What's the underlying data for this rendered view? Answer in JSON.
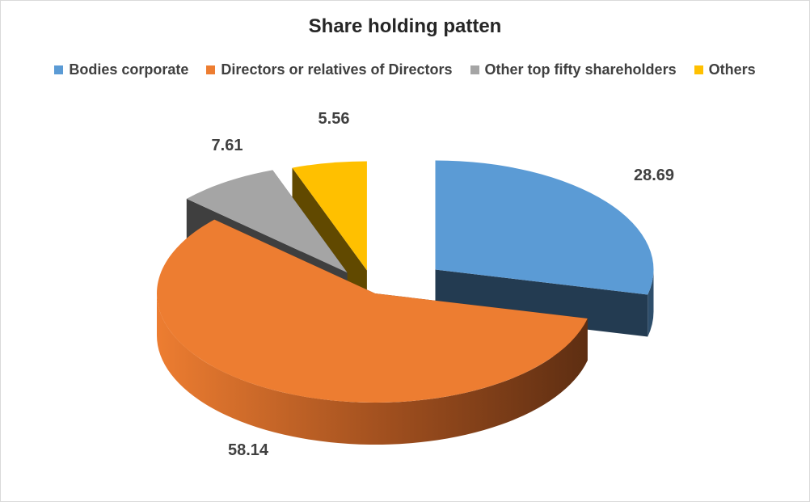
{
  "chart_data": {
    "type": "pie",
    "title": "Share holding patten",
    "categories": [
      "Bodies corporate",
      "Directors or relatives of Directors",
      "Other top fifty shareholders",
      "Others"
    ],
    "values": [
      28.69,
      58.14,
      7.61,
      5.56
    ],
    "value_labels": [
      "28.69",
      "58.14",
      "7.61",
      "5.56"
    ],
    "colors": [
      "#5B9BD5",
      "#ED7D31",
      "#A5A5A5",
      "#FFC000"
    ],
    "legend_position": "top",
    "style": "3d-exploded"
  }
}
